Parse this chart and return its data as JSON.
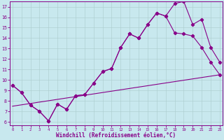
{
  "bg_color": "#c8e8ee",
  "grid_color": "#aacccc",
  "line_color": "#880088",
  "xlim": [
    -0.3,
    23.3
  ],
  "ylim": [
    5.7,
    17.5
  ],
  "ytick_vals": [
    6,
    7,
    8,
    9,
    10,
    11,
    12,
    13,
    14,
    15,
    16,
    17
  ],
  "xtick_vals": [
    0,
    1,
    2,
    3,
    4,
    5,
    6,
    7,
    8,
    9,
    10,
    11,
    12,
    13,
    14,
    15,
    16,
    17,
    18,
    19,
    20,
    21,
    22,
    23
  ],
  "xlabel": "Windchill (Refroidissement éolien,°C)",
  "line1_x": [
    0,
    1,
    2,
    3,
    4,
    5,
    6,
    7,
    8,
    9,
    10,
    11,
    12,
    13,
    14,
    15,
    16,
    17,
    18,
    19,
    20,
    21,
    22,
    23
  ],
  "line1_y": [
    9.5,
    8.8,
    7.6,
    7.0,
    6.1,
    7.7,
    7.2,
    8.5,
    8.6,
    9.7,
    10.8,
    11.1,
    13.1,
    14.4,
    14.0,
    15.3,
    16.4,
    16.1,
    17.3,
    17.5,
    15.3,
    15.8,
    13.1,
    11.7
  ],
  "line2_x": [
    0,
    1,
    2,
    3,
    4,
    5,
    6,
    7,
    8,
    9,
    10,
    11,
    12,
    13,
    14,
    15,
    16,
    17,
    18,
    19,
    20,
    21,
    22,
    23
  ],
  "line2_y": [
    9.5,
    8.8,
    7.6,
    7.0,
    6.1,
    7.7,
    7.2,
    8.5,
    8.6,
    9.7,
    10.8,
    11.1,
    13.1,
    14.4,
    14.0,
    15.3,
    16.4,
    16.1,
    14.5,
    14.4,
    14.2,
    13.1,
    11.7,
    10.5
  ],
  "line3_x": [
    0,
    23
  ],
  "line3_y": [
    7.5,
    10.5
  ],
  "lw": 0.8,
  "ms": 2.2
}
